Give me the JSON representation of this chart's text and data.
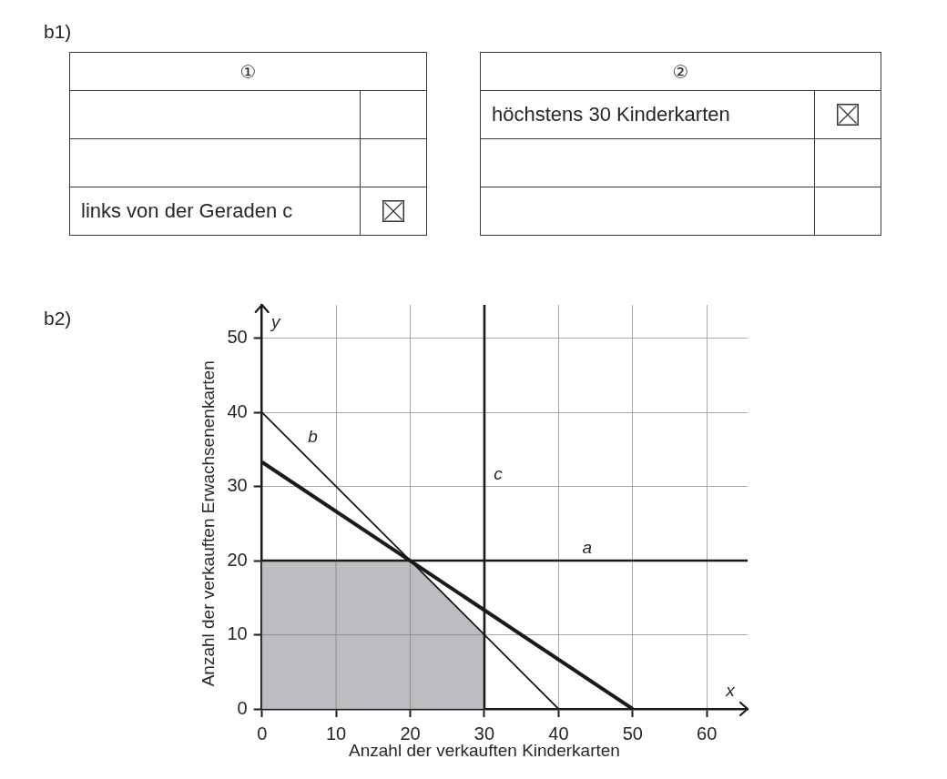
{
  "chart_data": {
    "type": "line",
    "title": "b2)",
    "xlabel": "Anzahl der verkauften Kinderkarten",
    "ylabel": "Anzahl der verkauften Erwachsenenkarten",
    "annotations": [
      "x",
      "y",
      "b1)",
      "①",
      "②",
      "höchstens 30 Kinderkarten",
      "links von der Geraden c"
    ],
    "series": [
      {
        "type": "area",
        "color": "#bcbdc0",
        "x": [
          0,
          20,
          30
        ],
        "values": [
          20,
          20,
          10
        ]
      },
      {
        "name": "a",
        "color": "#1a1a1a",
        "x": [
          0,
          42,
          65.5
        ],
        "values": [
          20,
          20,
          20
        ]
      },
      {
        "name": "b",
        "color": "#1a1a1a",
        "x": [
          0,
          5,
          40
        ],
        "values": [
          40,
          35,
          0
        ]
      },
      {
        "name": "c",
        "color": "#1a1a1a",
        "x": [
          30,
          30,
          30
        ],
        "values": [
          0,
          30,
          54.5
        ]
      },
      {
        "color": "#1a1a1a",
        "x": [
          0,
          50
        ],
        "values": [
          33.3,
          0
        ]
      }
    ],
    "xlim": [
      0,
      65.5
    ],
    "ylim": [
      0,
      54.5
    ],
    "xticks": [
      0,
      10,
      20,
      30,
      40,
      50,
      60
    ],
    "yticks": [
      0,
      10,
      20,
      30,
      40,
      50
    ],
    "grid": true,
    "marker": "none"
  }
}
